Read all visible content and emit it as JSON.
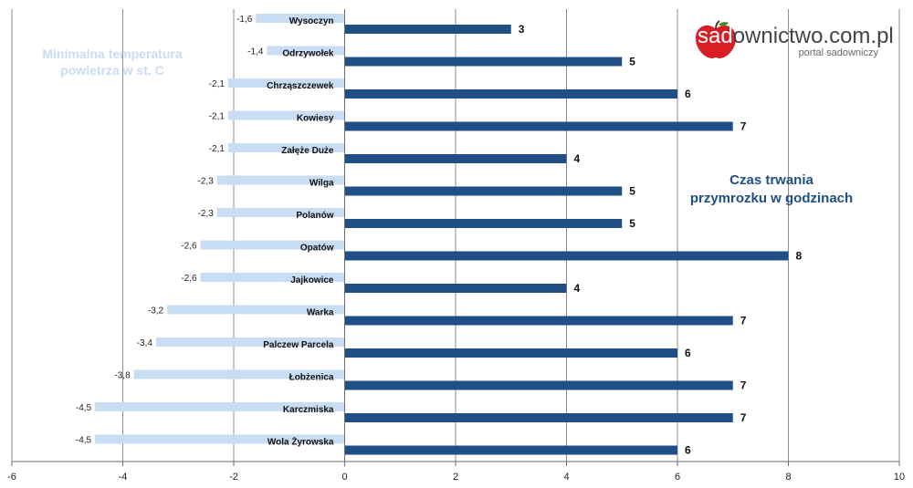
{
  "chart_data": {
    "type": "bar",
    "orientation": "horizontal",
    "categories": [
      "Wysoczyn",
      "Odrzywołek",
      "Chrząszczewek",
      "Kowiesy",
      "Załęże Duże",
      "Wilga",
      "Polanów",
      "Opatów",
      "Jajkowice",
      "Warka",
      "Palczew Parcela",
      "Łobżenica",
      "Karczmiska",
      "Wola Żyrowska"
    ],
    "series": [
      {
        "name": "Minimalna temperatura powietrza w st. C",
        "color": "#c8dcf3",
        "values": [
          -1.6,
          -1.4,
          -2.1,
          -2.1,
          -2.1,
          -2.3,
          -2.3,
          -2.6,
          -2.6,
          -3.2,
          -3.4,
          -3.8,
          -4.5,
          -4.5
        ],
        "labels": [
          "-1,6",
          "-1,4",
          "-2,1",
          "-2,1",
          "-2,1",
          "-2,3",
          "-2,3",
          "-2,6",
          "-2,6",
          "-3,2",
          "-3,4",
          "-3,8",
          "-4,5",
          "-4,5"
        ]
      },
      {
        "name": "Czas trwania przymrozku w godzinach",
        "color": "#1f4f84",
        "values": [
          3,
          5,
          6,
          7,
          4,
          5,
          5,
          8,
          4,
          7,
          6,
          7,
          7,
          6
        ],
        "labels": [
          "3",
          "5",
          "6",
          "7",
          "4",
          "5",
          "5",
          "8",
          "4",
          "7",
          "6",
          "7",
          "7",
          "6"
        ]
      }
    ],
    "xlim": [
      -6,
      10
    ],
    "xticks": [
      -6,
      -4,
      -2,
      0,
      2,
      4,
      6,
      8,
      10
    ],
    "grid": true,
    "legend": "annotations"
  },
  "annotations": {
    "temperature_line1": "Minimalna temperatura",
    "temperature_line2": "powietrza w st. C",
    "duration_line1": "Czas trwania",
    "duration_line2": "przymrozku w godzinach"
  },
  "logo": {
    "brand": "sad",
    "rest": "ownictwo.com.pl",
    "subtitle": "portal sadowniczy",
    "color": "#d91f26"
  }
}
